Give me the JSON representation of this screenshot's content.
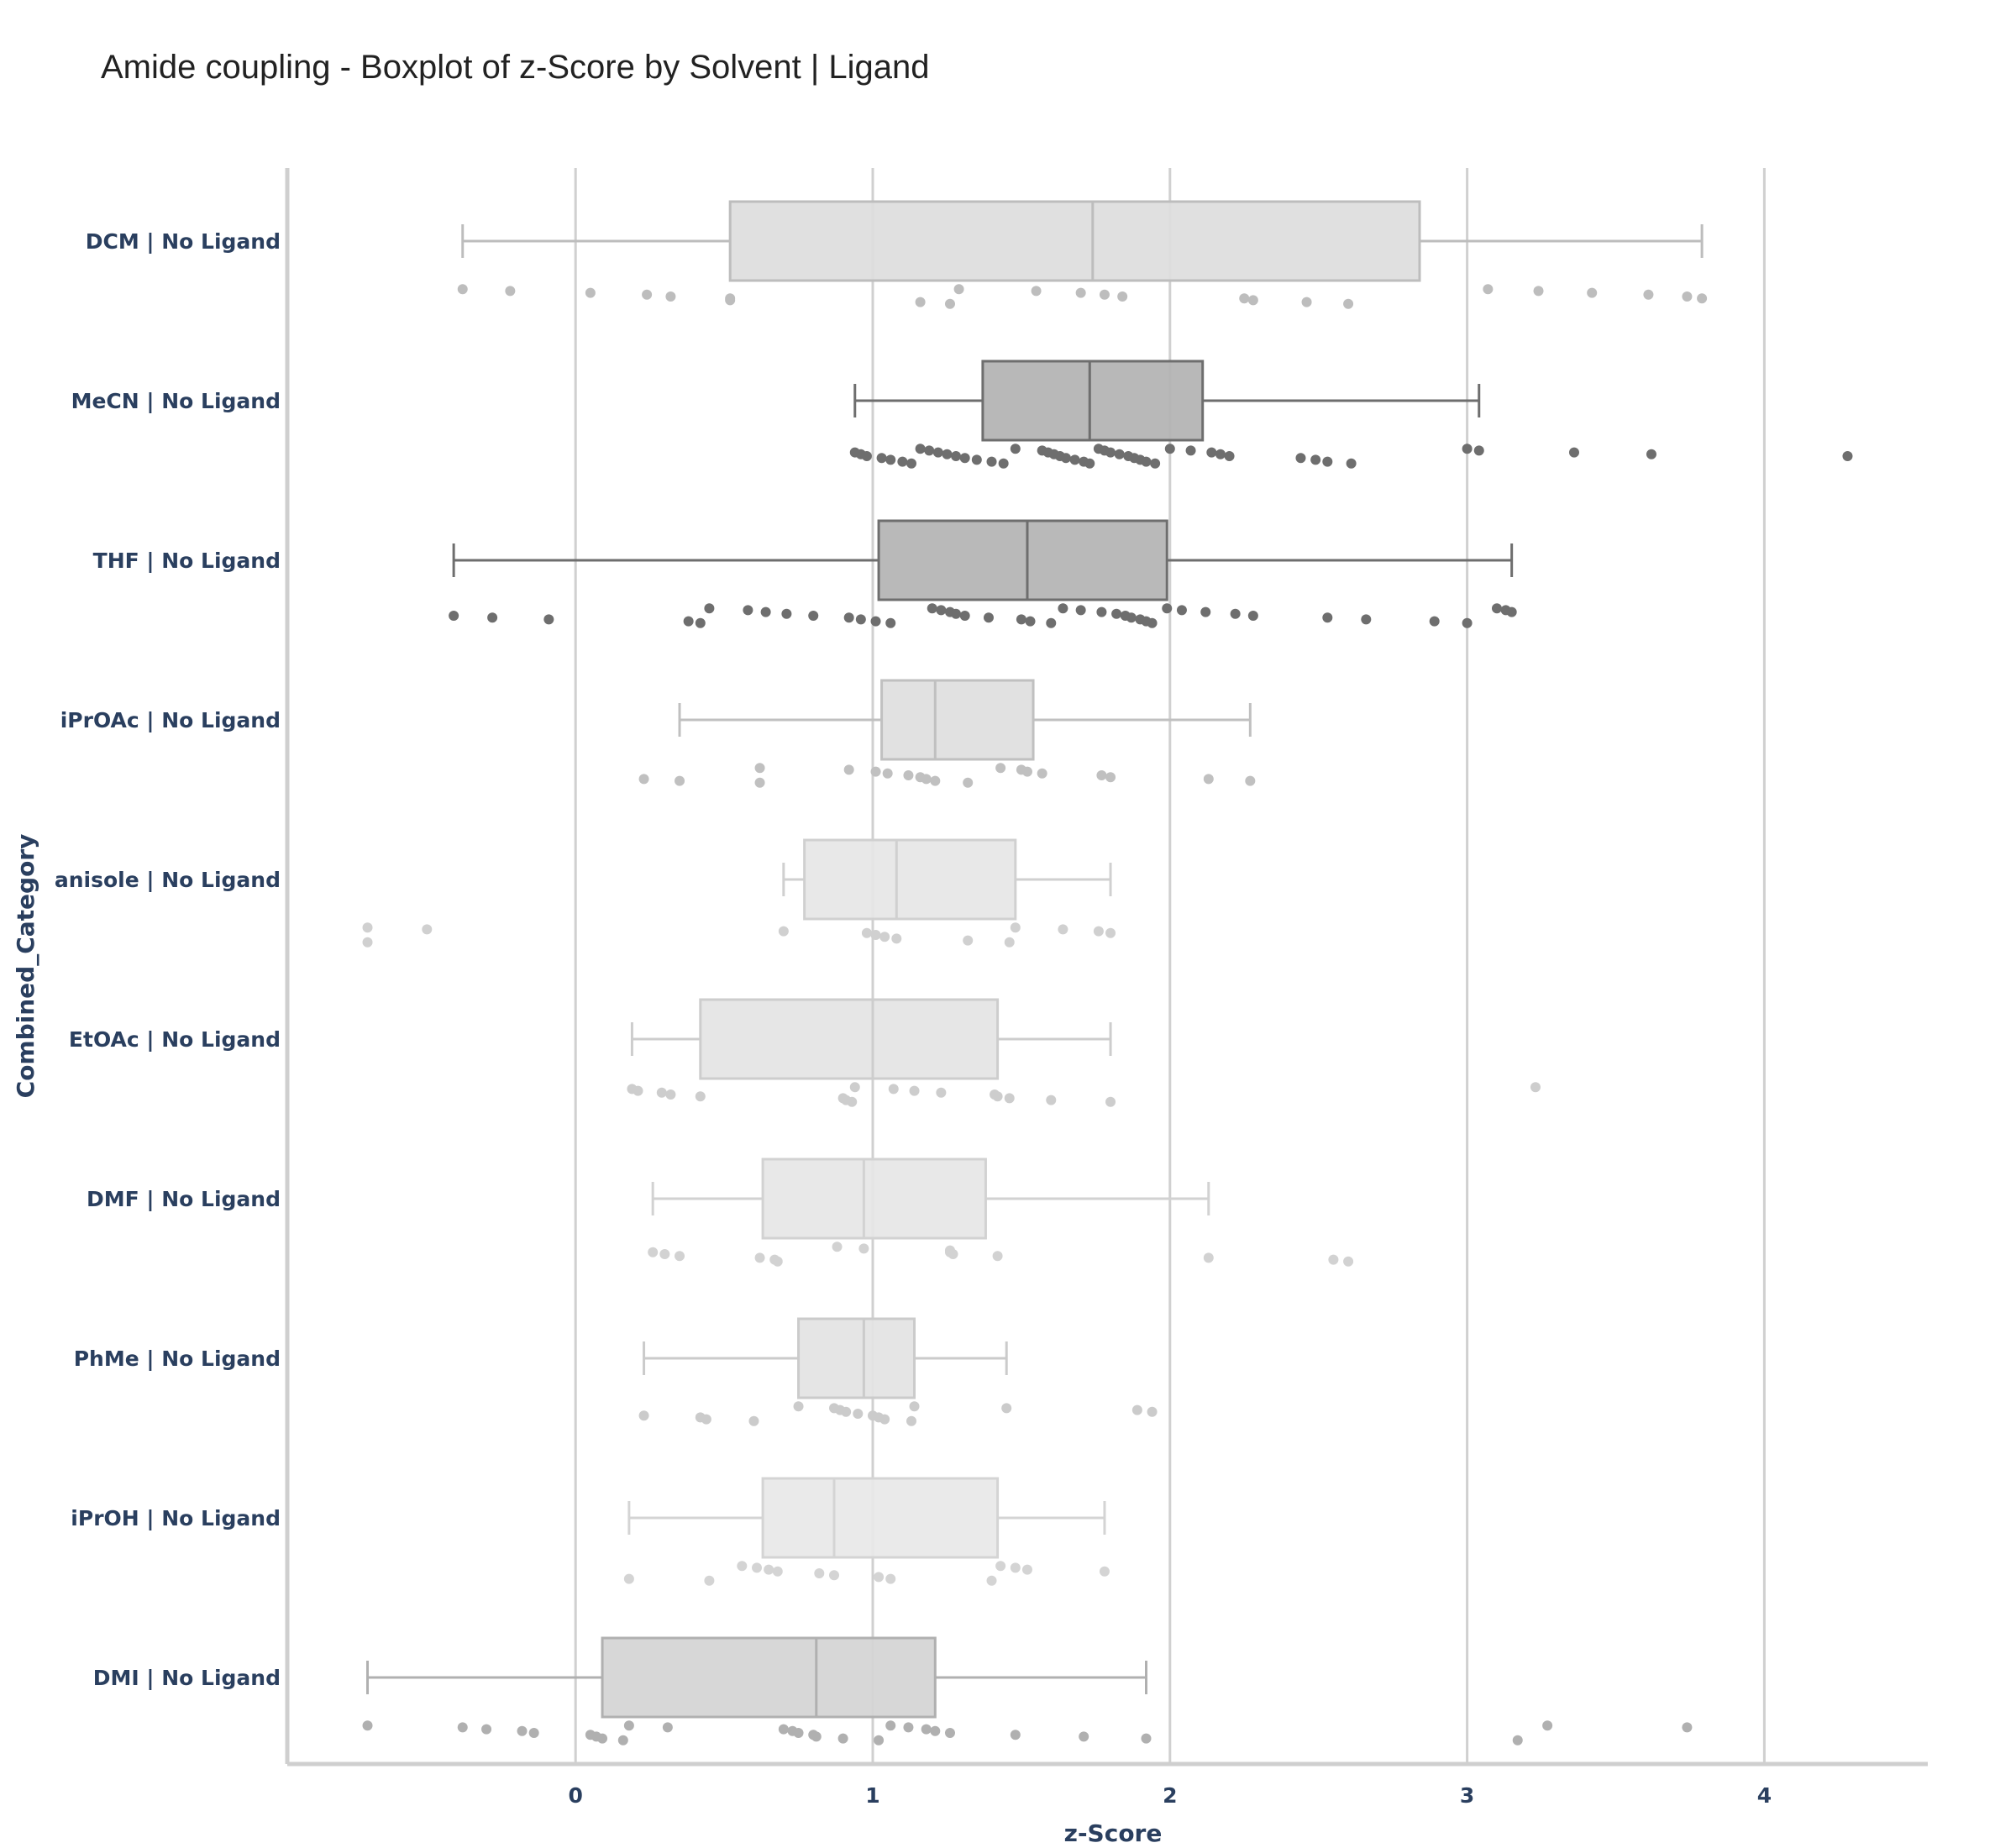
{
  "chart_data": {
    "type": "box",
    "title": "Amide coupling - Boxplot of z-Score by Solvent | Ligand",
    "xlabel": "z-Score",
    "ylabel": "Combined_Category",
    "xlim": [
      -0.97,
      4.55
    ],
    "xticks": [
      0,
      1,
      2,
      3,
      4
    ],
    "grid": "vertical",
    "orientation": "horizontal",
    "series": [
      {
        "category": "DCM | No Ligand",
        "min": -0.38,
        "q1": 0.52,
        "median": 1.74,
        "q3": 2.84,
        "max": 3.79,
        "fill": "#dddddd",
        "line": "#bdbdbd",
        "points": [
          -0.38,
          -0.22,
          0.05,
          0.24,
          0.32,
          0.52,
          0.52,
          1.16,
          1.26,
          1.29,
          1.55,
          1.7,
          1.78,
          1.84,
          2.25,
          2.28,
          2.46,
          2.6,
          3.07,
          3.24,
          3.42,
          3.61,
          3.74,
          3.79
        ]
      },
      {
        "category": "MeCN | No Ligand",
        "min": 0.94,
        "q1": 1.37,
        "median": 1.73,
        "q3": 2.11,
        "max": 3.04,
        "fill": "#b2b2b2",
        "line": "#6e6e6e",
        "points": [
          0.94,
          0.96,
          0.98,
          1.03,
          1.06,
          1.1,
          1.13,
          1.16,
          1.19,
          1.22,
          1.25,
          1.28,
          1.31,
          1.35,
          1.4,
          1.44,
          1.48,
          1.57,
          1.59,
          1.61,
          1.63,
          1.65,
          1.68,
          1.71,
          1.73,
          1.76,
          1.78,
          1.8,
          1.83,
          1.86,
          1.88,
          1.9,
          1.92,
          1.95,
          2.0,
          2.07,
          2.14,
          2.17,
          2.2,
          2.44,
          2.49,
          2.53,
          2.61,
          3.0,
          3.04,
          3.36,
          3.62,
          4.28
        ]
      },
      {
        "category": "THF | No Ligand",
        "min": -0.41,
        "q1": 1.02,
        "median": 1.52,
        "q3": 1.99,
        "max": 3.15,
        "fill": "#b3b3b3",
        "line": "#6e6e6e",
        "points": [
          -0.41,
          -0.28,
          -0.09,
          0.38,
          0.42,
          0.45,
          0.58,
          0.64,
          0.71,
          0.8,
          0.92,
          0.96,
          1.01,
          1.06,
          1.2,
          1.23,
          1.26,
          1.28,
          1.31,
          1.39,
          1.5,
          1.53,
          1.6,
          1.64,
          1.7,
          1.77,
          1.82,
          1.85,
          1.87,
          1.9,
          1.92,
          1.94,
          1.99,
          2.04,
          2.12,
          2.22,
          2.28,
          2.53,
          2.66,
          2.89,
          3.0,
          3.1,
          3.13,
          3.15
        ]
      },
      {
        "category": "iPrOAc | No Ligand",
        "min": 0.35,
        "q1": 1.03,
        "median": 1.21,
        "q3": 1.54,
        "max": 2.27,
        "fill": "#dedede",
        "line": "#c0c0c0",
        "points": [
          0.23,
          0.35,
          0.62,
          0.62,
          0.92,
          1.01,
          1.05,
          1.12,
          1.16,
          1.18,
          1.21,
          1.32,
          1.43,
          1.5,
          1.52,
          1.57,
          1.77,
          1.8,
          2.13,
          2.27
        ]
      },
      {
        "category": "anisole | No Ligand",
        "min": 0.7,
        "q1": 0.77,
        "median": 1.08,
        "q3": 1.48,
        "max": 1.8,
        "fill": "#e6e6e6",
        "line": "#d0d0d0",
        "points": [
          -0.7,
          -0.7,
          -0.5,
          0.7,
          0.98,
          1.01,
          1.04,
          1.08,
          1.32,
          1.46,
          1.48,
          1.64,
          1.76,
          1.8
        ]
      },
      {
        "category": "EtOAc | No Ligand",
        "min": 0.19,
        "q1": 0.42,
        "median": 1.0,
        "q3": 1.42,
        "max": 1.8,
        "fill": "#e4e4e4",
        "line": "#cdcdcd",
        "points": [
          0.19,
          0.21,
          0.29,
          0.32,
          0.42,
          0.9,
          0.91,
          0.93,
          0.94,
          1.07,
          1.14,
          1.23,
          1.41,
          1.42,
          1.46,
          1.6,
          1.8,
          3.23
        ]
      },
      {
        "category": "DMF | No Ligand",
        "min": 0.26,
        "q1": 0.63,
        "median": 0.97,
        "q3": 1.38,
        "max": 2.13,
        "fill": "#e6e6e6",
        "line": "#d2d2d2",
        "points": [
          0.26,
          0.3,
          0.35,
          0.62,
          0.67,
          0.68,
          0.88,
          0.97,
          1.26,
          1.26,
          1.27,
          1.42,
          2.13,
          2.55,
          2.6
        ]
      },
      {
        "category": "PhMe | No Ligand",
        "min": 0.23,
        "q1": 0.75,
        "median": 0.97,
        "q3": 1.14,
        "max": 1.45,
        "fill": "#e3e3e3",
        "line": "#cbcbcb",
        "points": [
          0.23,
          0.42,
          0.44,
          0.6,
          0.75,
          0.87,
          0.89,
          0.91,
          0.95,
          1.0,
          1.02,
          1.04,
          1.13,
          1.14,
          1.45,
          1.89,
          1.94
        ]
      },
      {
        "category": "iPrOH | No Ligand",
        "min": 0.18,
        "q1": 0.63,
        "median": 0.87,
        "q3": 1.42,
        "max": 1.78,
        "fill": "#e8e8e8",
        "line": "#d4d4d4",
        "points": [
          0.18,
          0.45,
          0.56,
          0.61,
          0.65,
          0.68,
          0.82,
          0.87,
          1.02,
          1.06,
          1.4,
          1.43,
          1.48,
          1.52,
          1.78
        ]
      },
      {
        "category": "DMI | No Ligand",
        "min": -0.7,
        "q1": 0.09,
        "median": 0.81,
        "q3": 1.21,
        "max": 1.92,
        "fill": "#d4d4d4",
        "line": "#b0b0b0",
        "points": [
          -0.7,
          -0.38,
          -0.3,
          -0.18,
          -0.14,
          0.05,
          0.07,
          0.09,
          0.16,
          0.18,
          0.31,
          0.7,
          0.73,
          0.75,
          0.8,
          0.81,
          0.9,
          1.02,
          1.06,
          1.12,
          1.18,
          1.21,
          1.26,
          1.48,
          1.71,
          1.92,
          3.17,
          3.27,
          3.74
        ]
      }
    ]
  }
}
